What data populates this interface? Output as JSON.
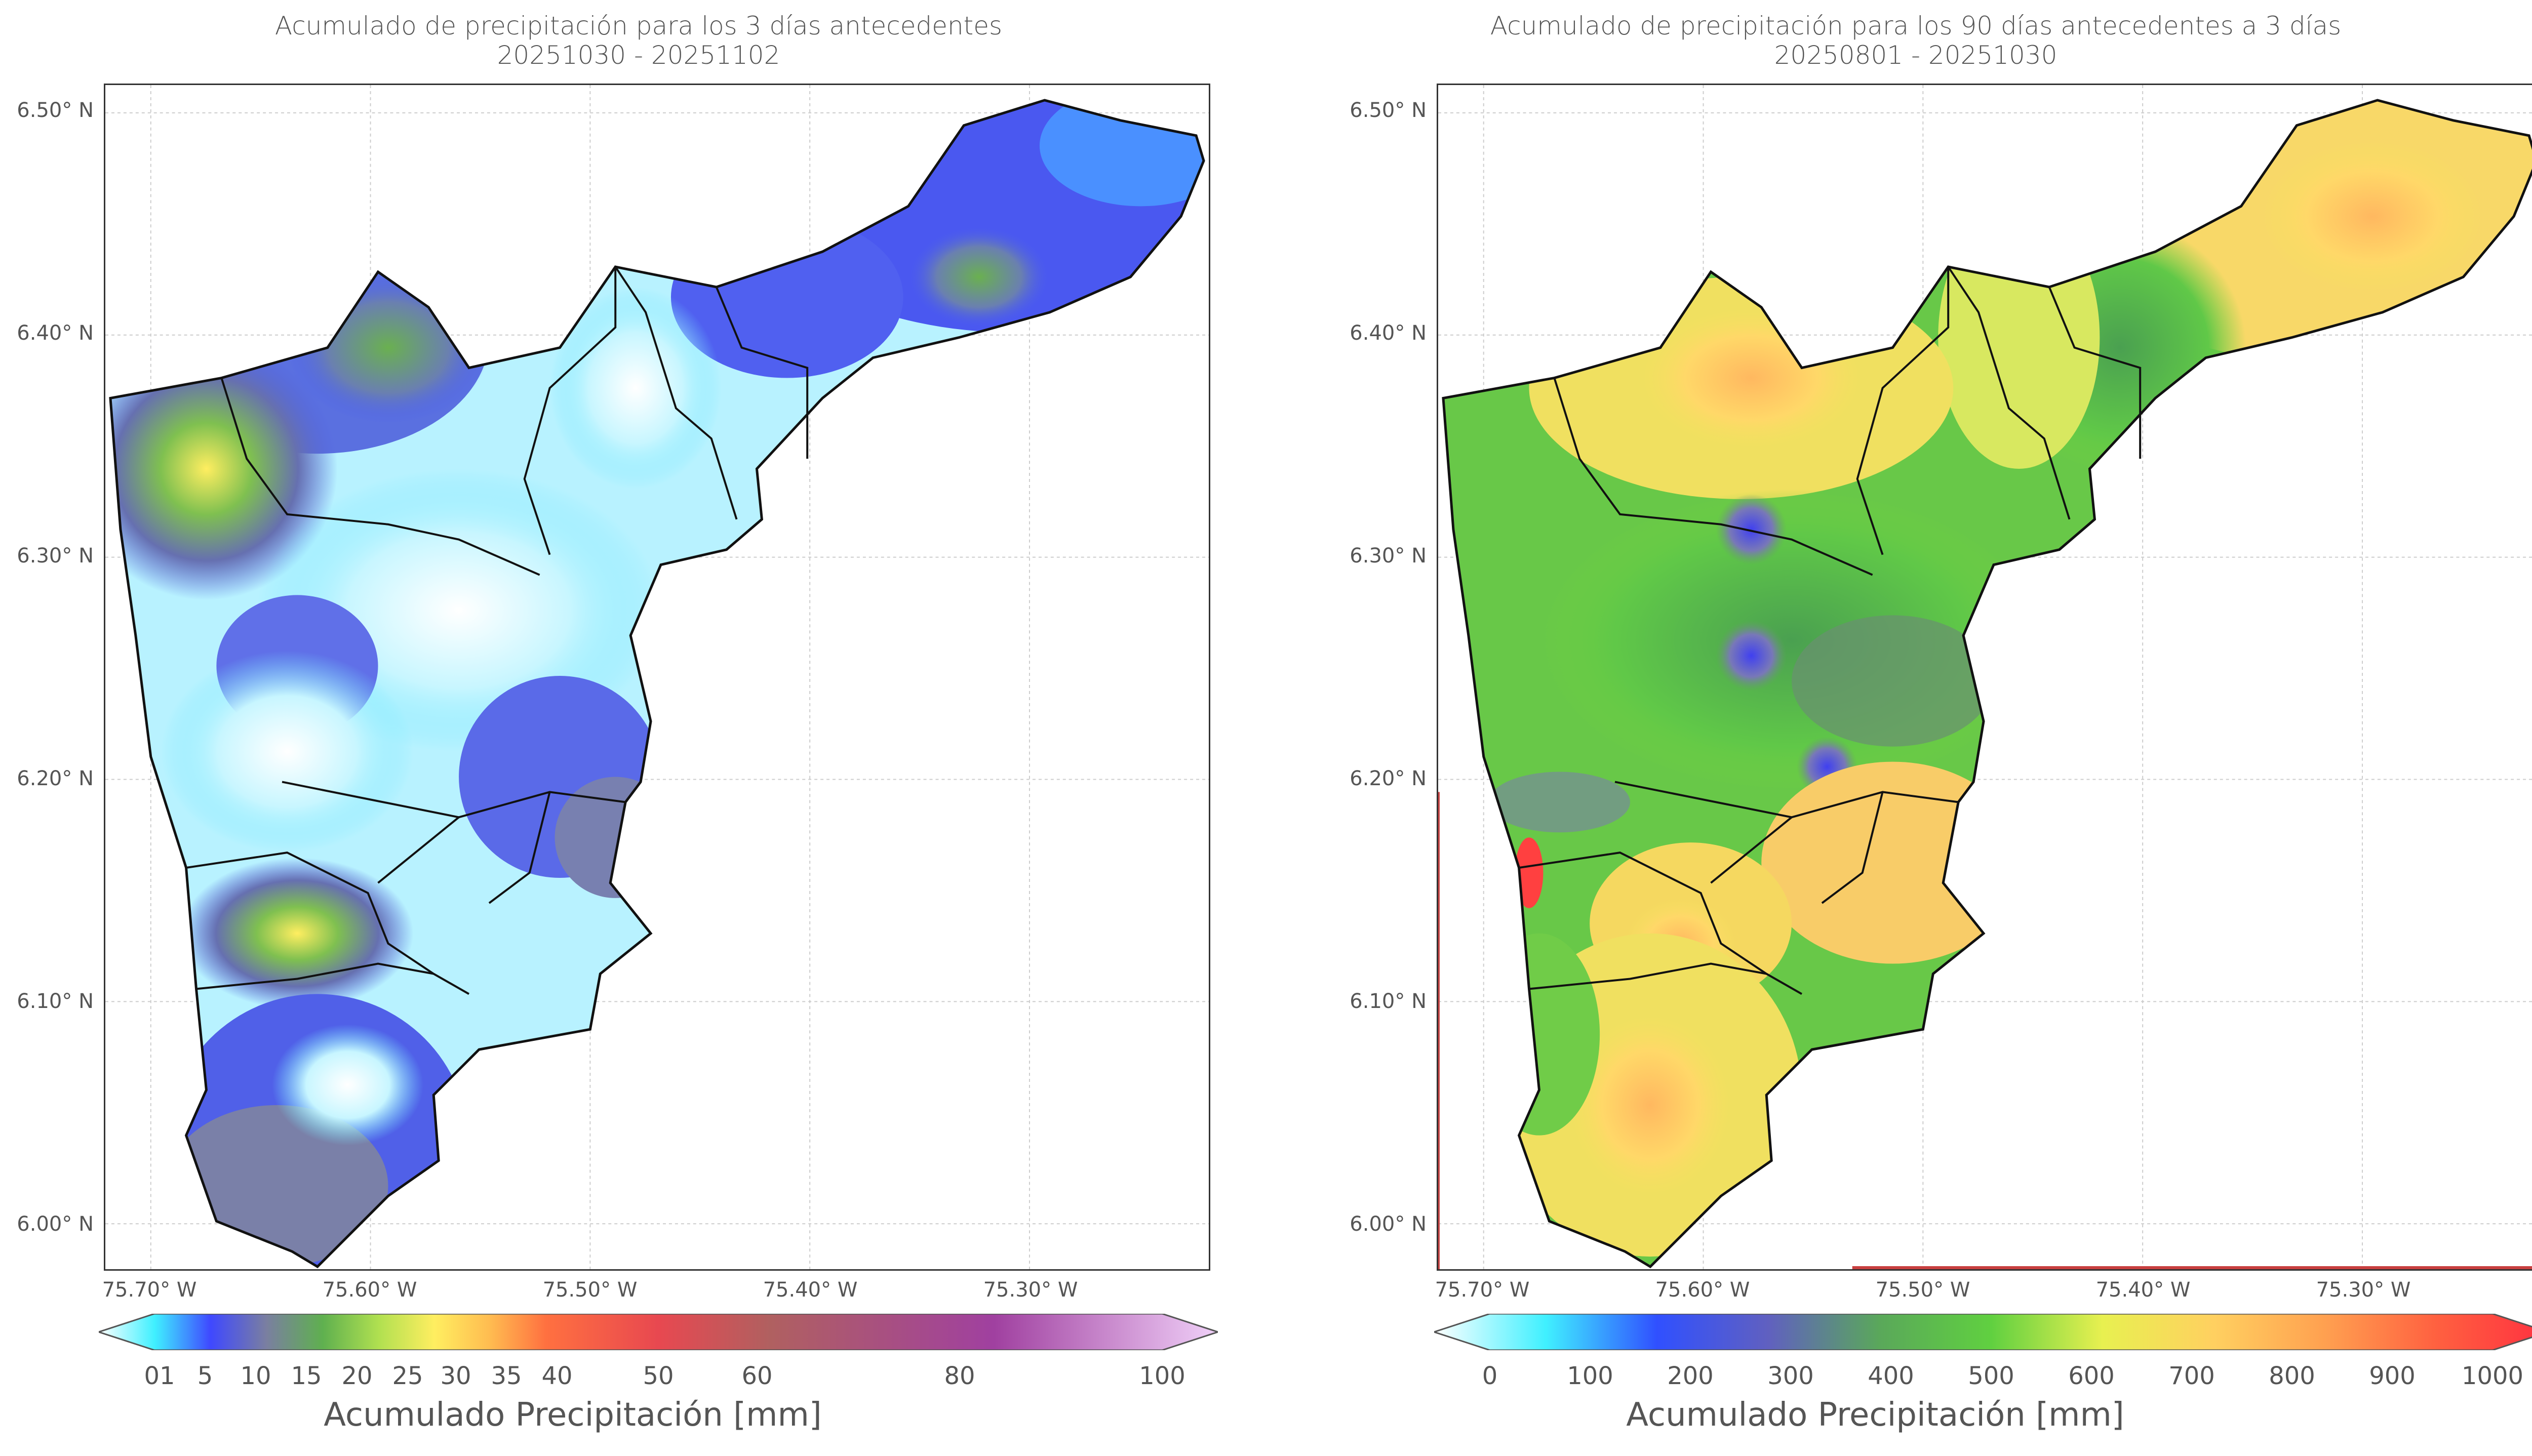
{
  "left": {
    "title_line1": "Acumulado de precipitación para los 3 días antecedentes",
    "title_line2": "20251030 - 20251102",
    "y_ticks": [
      "6.50° N",
      "6.40° N",
      "6.30° N",
      "6.20° N",
      "6.10° N",
      "6.00° N"
    ],
    "x_ticks": [
      "75.70° W",
      "75.60° W",
      "75.50° W",
      "75.40° W",
      "75.30° W"
    ],
    "colorbar_ticks": [
      "01",
      "5",
      "10",
      "15",
      "20",
      "25",
      "30",
      "35",
      "40",
      "50",
      "60",
      "80",
      "100"
    ],
    "colorbar_label": "Acumulado Precipitación [mm]"
  },
  "right": {
    "title_line1": "Acumulado de precipitación para los 90 días antecedentes a 3 días",
    "title_line2": "20250801 - 20251030",
    "y_ticks": [
      "6.50° N",
      "6.40° N",
      "6.30° N",
      "6.20° N",
      "6.10° N",
      "6.00° N"
    ],
    "x_ticks": [
      "75.70° W",
      "75.60° W",
      "75.50° W",
      "75.40° W",
      "75.30° W"
    ],
    "colorbar_ticks": [
      "0",
      "100",
      "200",
      "300",
      "400",
      "500",
      "600",
      "700",
      "800",
      "900",
      "1000"
    ],
    "colorbar_label": "Acumulado Precipitación [mm]"
  },
  "colors": {
    "left_scale": [
      "#ffffff",
      "#3ff0ff",
      "#3f48ff",
      "#7a7fa0",
      "#5fb04f",
      "#b0e050",
      "#ffee60",
      "#ffbb50",
      "#ff7040",
      "#e84850",
      "#b06060",
      "#a040a0",
      "#f0d0f8"
    ],
    "right_scale": [
      "#ffffff",
      "#40f0ff",
      "#3050ff",
      "#6060c0",
      "#5aa85a",
      "#60d040",
      "#e8f050",
      "#ffd060",
      "#ffa050",
      "#ff6040",
      "#ff3040"
    ]
  }
}
